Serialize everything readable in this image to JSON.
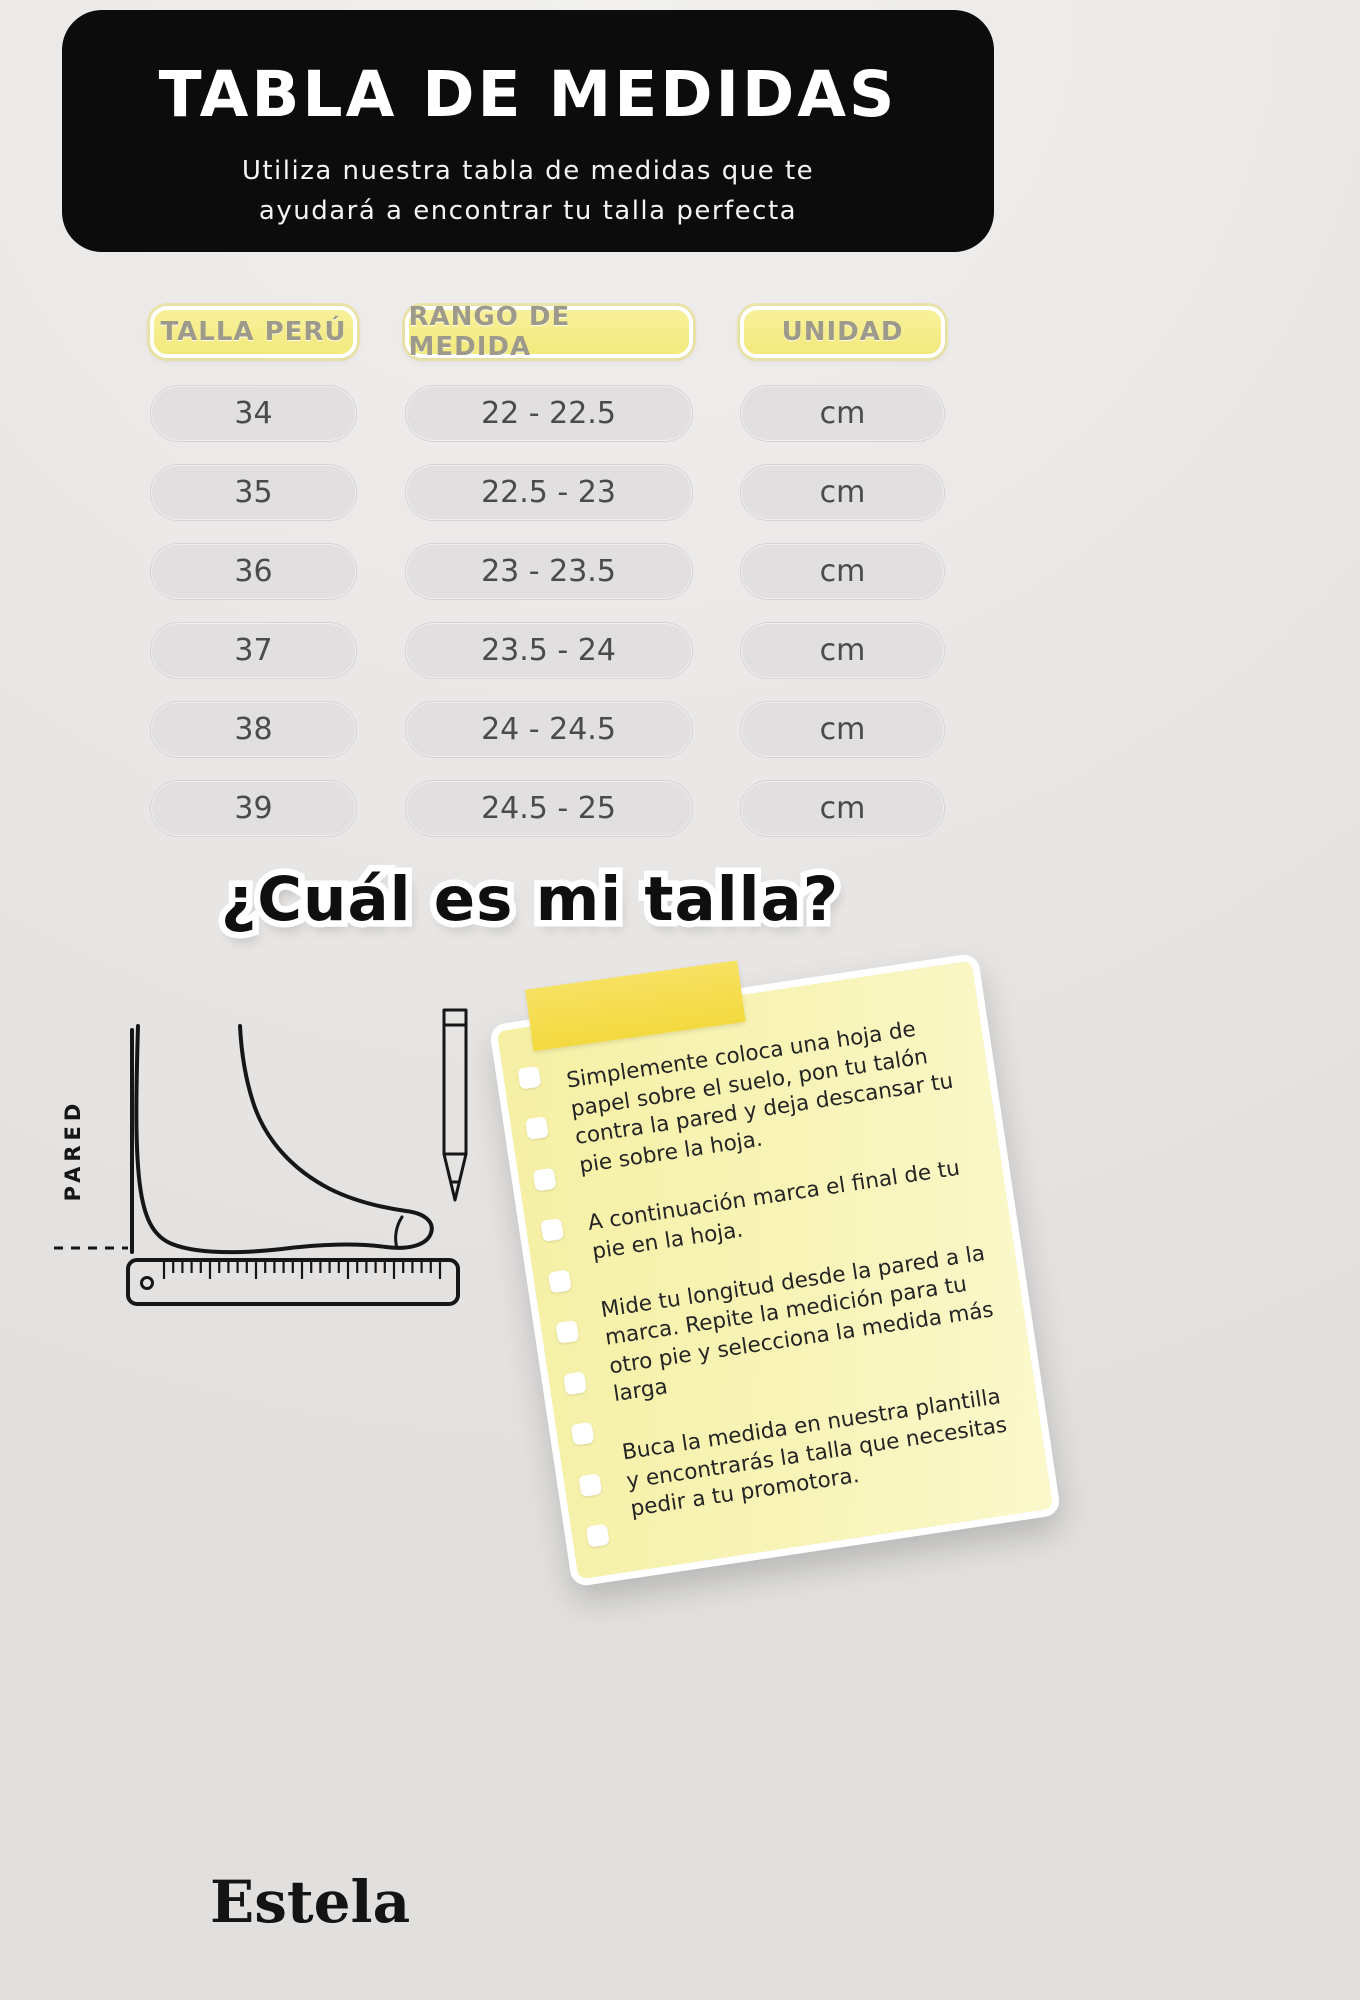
{
  "header": {
    "title": "TABLA DE MEDIDAS",
    "subtitle_line1": "Utiliza nuestra tabla de medidas que te",
    "subtitle_line2": "ayudará a encontrar tu talla perfecta"
  },
  "table": {
    "columns": [
      "TALLA PERÚ",
      "RANGO DE MEDIDA",
      "UNIDAD"
    ],
    "rows": [
      {
        "talla": "34",
        "rango": "22 - 22.5",
        "unidad": "cm"
      },
      {
        "talla": "35",
        "rango": "22.5 - 23",
        "unidad": "cm"
      },
      {
        "talla": "36",
        "rango": "23 - 23.5",
        "unidad": "cm"
      },
      {
        "talla": "37",
        "rango": "23.5 - 24",
        "unidad": "cm"
      },
      {
        "talla": "38",
        "rango": "24 - 24.5",
        "unidad": "cm"
      },
      {
        "talla": "39",
        "rango": "24.5 - 25",
        "unidad": "cm"
      }
    ]
  },
  "quiz": {
    "title": "¿Cuál es mi talla?"
  },
  "diagram": {
    "wall_label": "PARED",
    "icons": [
      "foot-outline-icon",
      "ruler-icon",
      "pencil-icon"
    ]
  },
  "note": {
    "bullet_count": 10,
    "steps": [
      "Simplemente coloca una hoja de papel sobre el suelo, pon tu talón contra la pared y deja descansar tu pie sobre la hoja.",
      "A continuación marca el final de tu pie en la hoja.",
      "Mide tu longitud desde la pared a la marca. Repite la medición para tu otro pie y selecciona la medida más larga",
      "Buca la medida en nuestra plantilla y encontrarás la talla que necesitas pedir a tu promotora."
    ]
  },
  "brand": {
    "name": "Estela"
  },
  "colors": {
    "banner-bg": "#0c0c0c",
    "header-pill": "#f2e97c",
    "row-pill": "#e2dfe0",
    "note-bg": "#f8f4b8",
    "tape": "#f3d93e",
    "page-bg": "#eae8e6"
  }
}
